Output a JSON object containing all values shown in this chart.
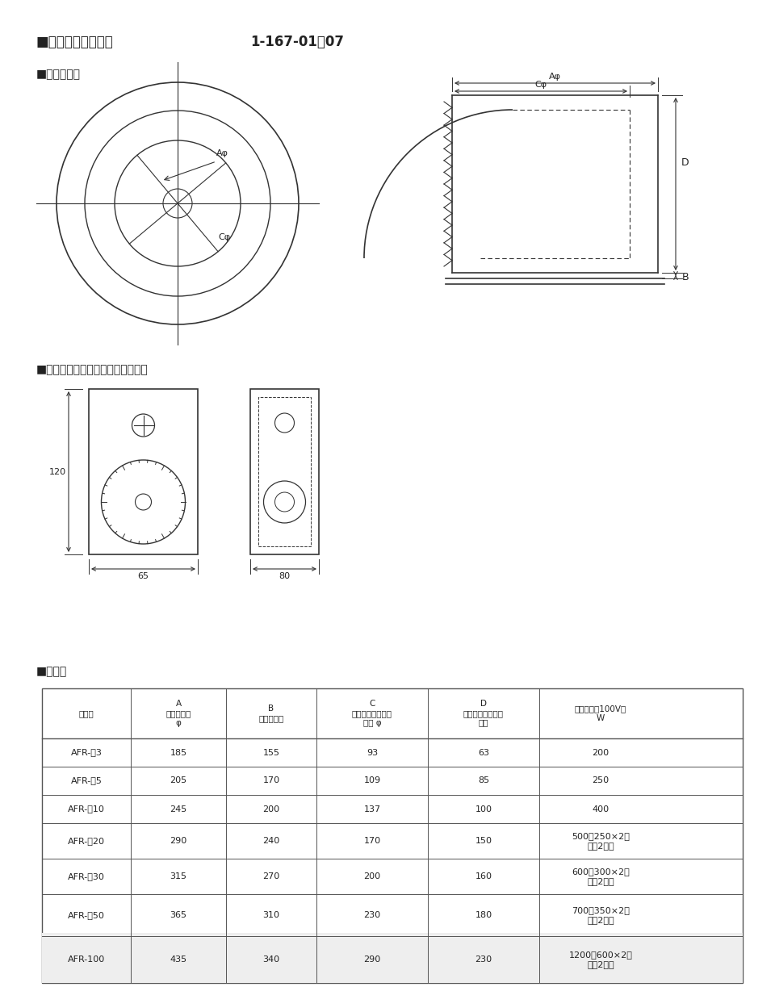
{
  "title_left": "■マントルヒーター",
  "title_right": "1-167-01～07",
  "section1": "■外形寸法図",
  "section2": "■入力調節・温度調節器用ボックス",
  "section3": "■寸法表",
  "label_Aphi": "Aφ",
  "label_Cphi": "Cφ",
  "label_B": "B",
  "label_D": "D",
  "dim_65": "65",
  "dim_80": "80",
  "dim_120": "120",
  "table_col_header_row1": [
    "型　番",
    "A",
    "B",
    "C",
    "D",
    "電気容量（100V）"
  ],
  "table_col_header_row2": [
    "",
    "ケース外寸",
    "ケース高さ",
    "マントルヒーター",
    "マントルヒーター",
    "W"
  ],
  "table_col_header_row3": [
    "",
    "φ",
    "",
    "内寸 φ",
    "深さ",
    ""
  ],
  "table_rows": [
    [
      "AFR-　3",
      "185",
      "155",
      "93",
      "63",
      "200"
    ],
    [
      "AFR-　5",
      "205",
      "170",
      "109",
      "85",
      "250"
    ],
    [
      "AFR-　10",
      "245",
      "200",
      "137",
      "100",
      "400"
    ],
    [
      "AFR-　20",
      "290",
      "240",
      "170",
      "150",
      "500（250×2）\n上下2回路"
    ],
    [
      "AFR-　30",
      "315",
      "270",
      "200",
      "160",
      "600（300×2）\n上下2回路"
    ],
    [
      "AFR-　50",
      "365",
      "310",
      "230",
      "180",
      "700（350×2）\n上下2回路"
    ],
    [
      "AFR-100",
      "435",
      "340",
      "290",
      "230",
      "1200（600×2）\n上下2回路"
    ]
  ],
  "bg_color": "#ffffff",
  "line_color": "#333333"
}
